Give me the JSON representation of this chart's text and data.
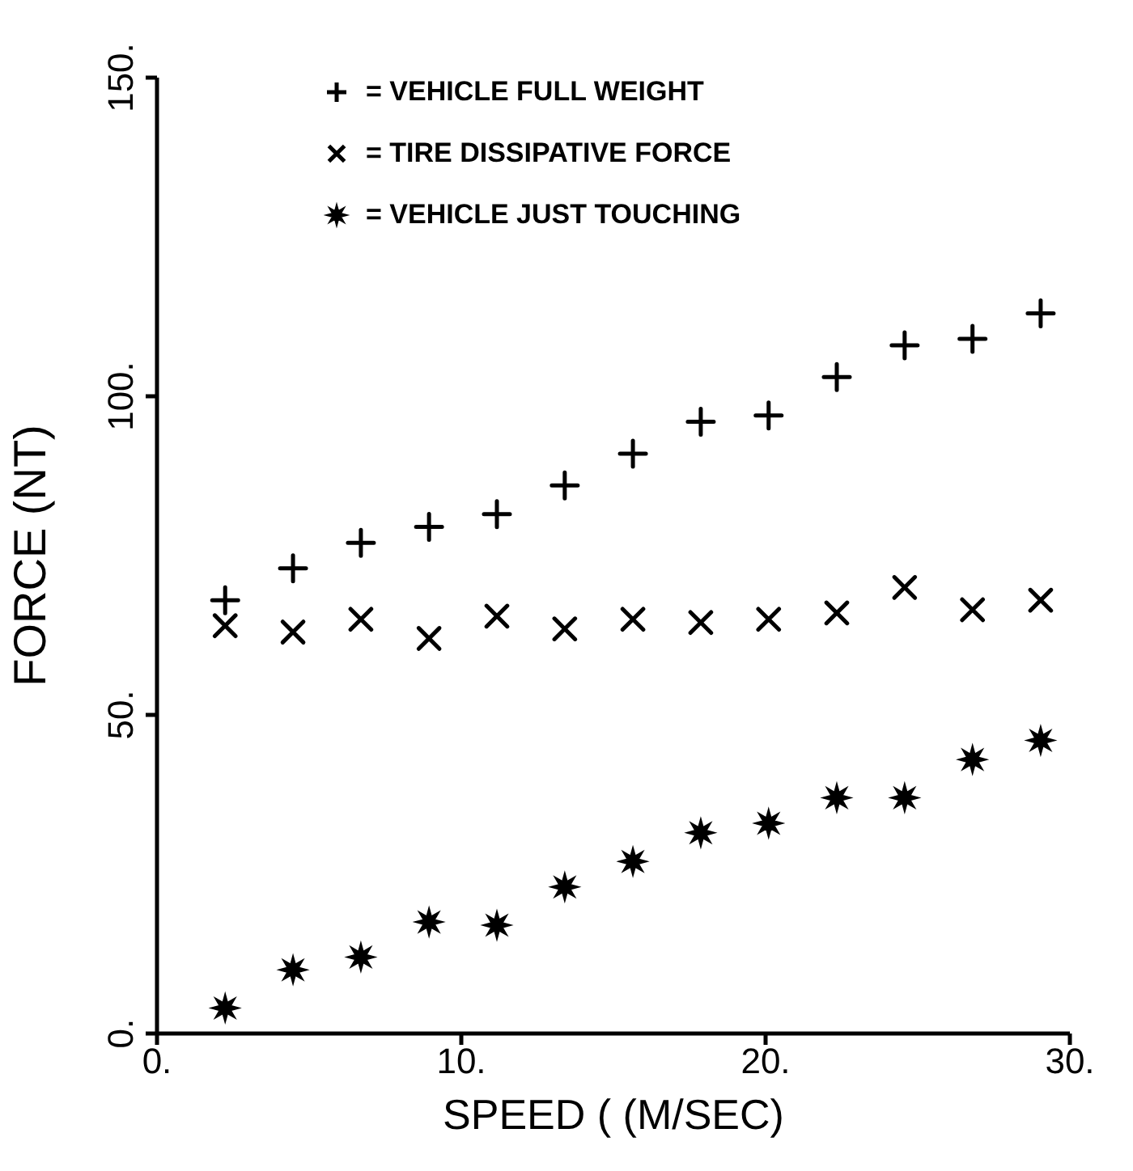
{
  "chart_data": {
    "type": "scatter",
    "xlabel": "SPEED ( (M/SEC)",
    "ylabel": "FORCE (NT)",
    "xlim": [
      0,
      30
    ],
    "xticks": [
      {
        "value": 0,
        "label": "0."
      },
      {
        "value": 10,
        "label": "10."
      },
      {
        "value": 20,
        "label": "20."
      },
      {
        "value": 30,
        "label": "30."
      }
    ],
    "ylim": [
      0,
      150
    ],
    "yticks": [
      {
        "value": 0,
        "label": "0."
      },
      {
        "value": 50,
        "label": "50."
      },
      {
        "value": 100,
        "label": "100."
      },
      {
        "value": 150,
        "label": "150."
      }
    ],
    "x": [
      2.24,
      4.47,
      6.7,
      8.94,
      11.17,
      13.4,
      15.64,
      17.87,
      20.1,
      22.34,
      24.57,
      26.8,
      29.04
    ],
    "grid": false,
    "legend": "top",
    "series": [
      {
        "name": "= VEHICLE FULL WEIGHT",
        "color": "#000000",
        "marker": "cross",
        "values": [
          68,
          73,
          77,
          79.5,
          81.5,
          86,
          91,
          96,
          97,
          103,
          108,
          109,
          113
        ]
      },
      {
        "name": "= TIRE DISSIPATIVE FORCE",
        "color": "#000000",
        "marker": "x",
        "values": [
          64,
          63,
          65,
          62,
          65.5,
          63.5,
          65,
          64.5,
          65,
          66,
          70,
          66.5,
          68
        ]
      },
      {
        "name": "= VEHICLE JUST TOUCHING",
        "color": "#000000",
        "marker": "star",
        "values": [
          4,
          10,
          12,
          17.5,
          17,
          23,
          27,
          31.5,
          33,
          37,
          37,
          43,
          46
        ]
      }
    ]
  }
}
